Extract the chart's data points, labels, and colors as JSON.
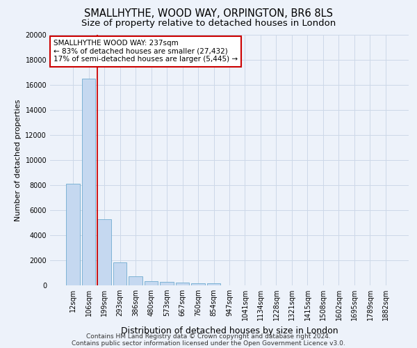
{
  "title": "SMALLHYTHE, WOOD WAY, ORPINGTON, BR6 8LS",
  "subtitle": "Size of property relative to detached houses in London",
  "xlabel": "Distribution of detached houses by size in London",
  "ylabel": "Number of detached properties",
  "categories": [
    "12sqm",
    "106sqm",
    "199sqm",
    "293sqm",
    "386sqm",
    "480sqm",
    "573sqm",
    "667sqm",
    "760sqm",
    "854sqm",
    "947sqm",
    "1041sqm",
    "1134sqm",
    "1228sqm",
    "1321sqm",
    "1415sqm",
    "1508sqm",
    "1602sqm",
    "1695sqm",
    "1789sqm",
    "1882sqm"
  ],
  "values": [
    8100,
    16500,
    5300,
    1850,
    700,
    350,
    270,
    220,
    170,
    150,
    0,
    0,
    0,
    0,
    0,
    0,
    0,
    0,
    0,
    0,
    0
  ],
  "bar_color": "#c5d8f0",
  "bar_edge_color": "#6fabd0",
  "grid_color": "#ccd8e8",
  "background_color": "#edf2fa",
  "vline_color": "#cc0000",
  "annotation_text": "SMALLHYTHE WOOD WAY: 237sqm\n← 83% of detached houses are smaller (27,432)\n17% of semi-detached houses are larger (5,445) →",
  "annotation_box_color": "#ffffff",
  "annotation_border_color": "#cc0000",
  "ylim": [
    0,
    20000
  ],
  "yticks": [
    0,
    2000,
    4000,
    6000,
    8000,
    10000,
    12000,
    14000,
    16000,
    18000,
    20000
  ],
  "footer1": "Contains HM Land Registry data © Crown copyright and database right 2024.",
  "footer2": "Contains public sector information licensed under the Open Government Licence v3.0.",
  "title_fontsize": 10.5,
  "subtitle_fontsize": 9.5,
  "xlabel_fontsize": 9,
  "ylabel_fontsize": 8,
  "tick_fontsize": 7,
  "annotation_fontsize": 7.5,
  "footer_fontsize": 6.5
}
